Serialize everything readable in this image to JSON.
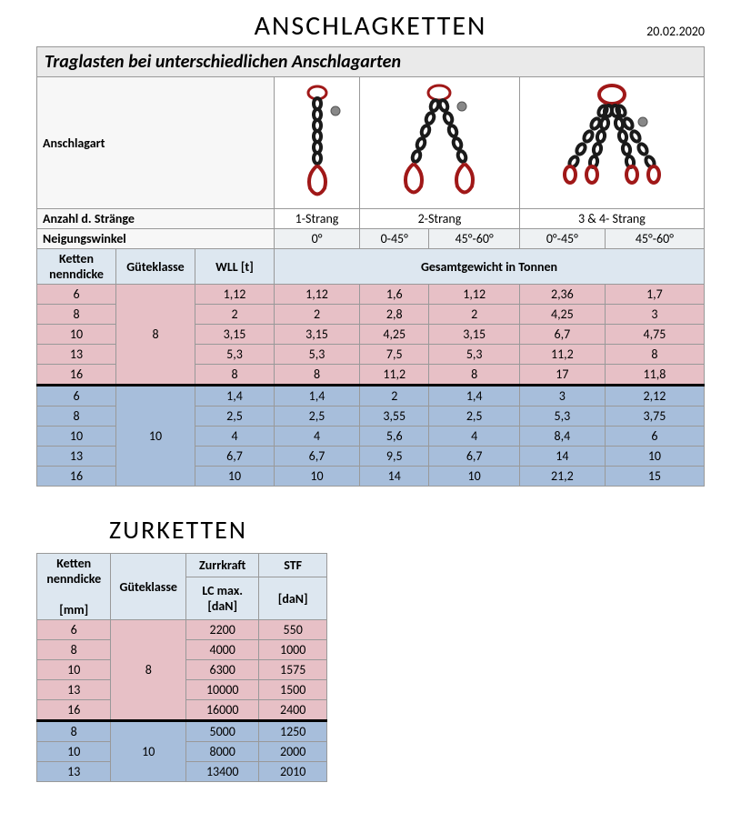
{
  "date": "20.02.2020",
  "title1": "ANSCHLAGKETTEN",
  "subtitle1": "Traglasten bei unterschiedlichen Anschlagarten",
  "labels": {
    "anschlagart": "Anschlagart",
    "anzahl": "Anzahl d. Stränge",
    "neigung": "Neigungswinkel",
    "ketten": "Ketten nenndicke",
    "gute": "Güteklasse",
    "wll": "WLL [t]",
    "gesamt": "Gesamtgewicht in Tonnen",
    "mm": "[mm]",
    "zurr": "Zurrkraft",
    "stf": "STF",
    "lcmax": "LC max. [daN]",
    "dan": "[daN]"
  },
  "strang": [
    "1-Strang",
    "2-Strang",
    "3 & 4- Strang"
  ],
  "winkel": [
    "0°",
    "0-45°",
    "45°-60°",
    "0°-45°",
    "45°-60°"
  ],
  "grade8": "8",
  "grade10": "10",
  "t1_rows8": [
    [
      "6",
      "1,12",
      "1,12",
      "1,6",
      "1,12",
      "2,36",
      "1,7"
    ],
    [
      "8",
      "2",
      "2",
      "2,8",
      "2",
      "4,25",
      "3"
    ],
    [
      "10",
      "3,15",
      "3,15",
      "4,25",
      "3,15",
      "6,7",
      "4,75"
    ],
    [
      "13",
      "5,3",
      "5,3",
      "7,5",
      "5,3",
      "11,2",
      "8"
    ],
    [
      "16",
      "8",
      "8",
      "11,2",
      "8",
      "17",
      "11,8"
    ]
  ],
  "t1_rows10": [
    [
      "6",
      "1,4",
      "1,4",
      "2",
      "1,4",
      "3",
      "2,12"
    ],
    [
      "8",
      "2,5",
      "2,5",
      "3,55",
      "2,5",
      "5,3",
      "3,75"
    ],
    [
      "10",
      "4",
      "4",
      "5,6",
      "4",
      "8,4",
      "6"
    ],
    [
      "13",
      "6,7",
      "6,7",
      "9,5",
      "6,7",
      "14",
      "10"
    ],
    [
      "16",
      "10",
      "10",
      "14",
      "10",
      "21,2",
      "15"
    ]
  ],
  "title2": "ZURKETTEN",
  "t2_rows8": [
    [
      "6",
      "2200",
      "550"
    ],
    [
      "8",
      "4000",
      "1000"
    ],
    [
      "10",
      "6300",
      "1575"
    ],
    [
      "13",
      "10000",
      "1500"
    ],
    [
      "16",
      "16000",
      "2400"
    ]
  ],
  "t2_rows10": [
    [
      "8",
      "5000",
      "1250"
    ],
    [
      "10",
      "8000",
      "2000"
    ],
    [
      "13",
      "13400",
      "2010"
    ]
  ],
  "colors": {
    "pink": "#e7c0c6",
    "blue": "#a7bedb",
    "header_blue": "#dde7f0",
    "grey": "#eaeaea",
    "chain_red": "#a01818",
    "chain_black": "#1a1a1a"
  }
}
